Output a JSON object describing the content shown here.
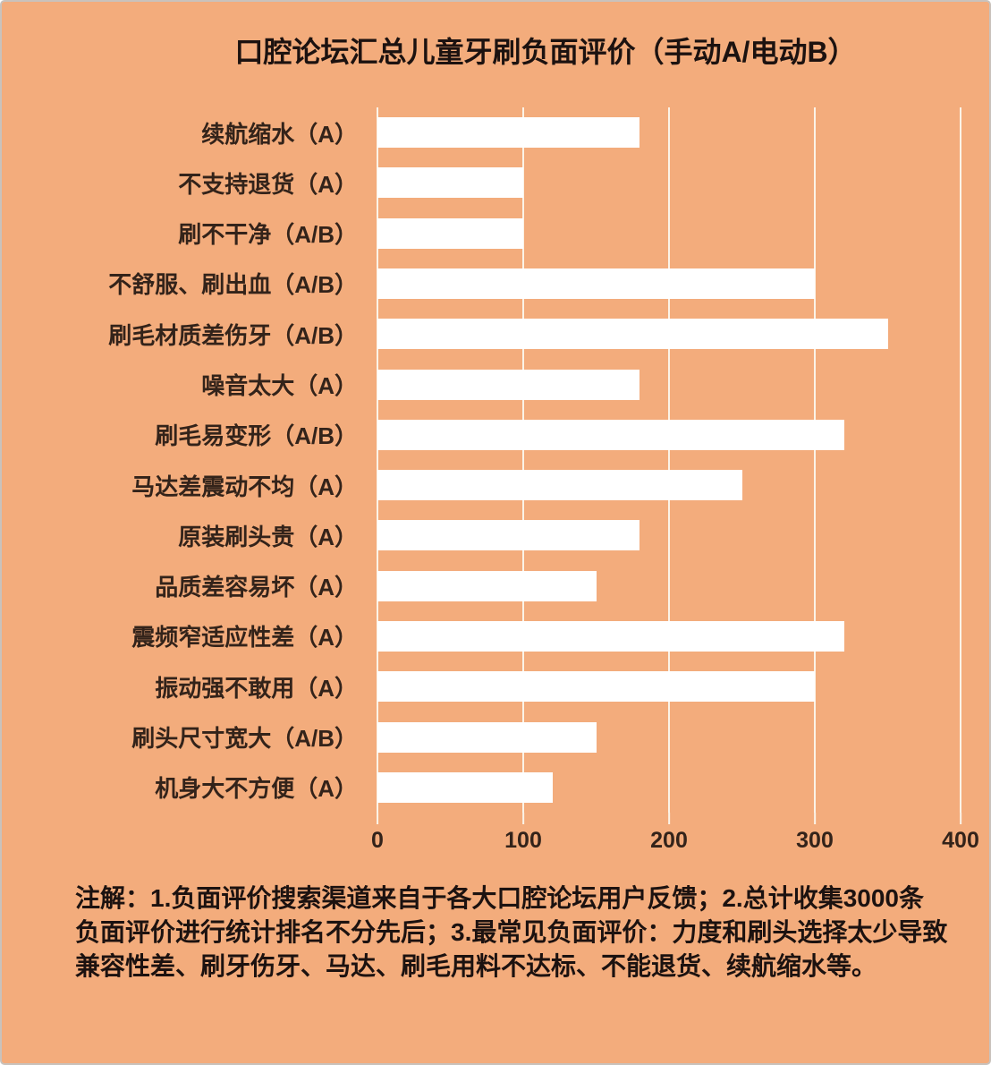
{
  "title": "口腔论坛汇总儿童牙刷负面评价（手动A/电动B）",
  "colors": {
    "background": "#F3AC7C",
    "bar": "#FFFFFF",
    "gridline": "rgba(252,248,240,0.92)",
    "label_text": "#33231A",
    "title_text": "#1C1210"
  },
  "chart_data": {
    "type": "bar",
    "orientation": "horizontal",
    "title": "口腔论坛汇总儿童牙刷负面评价（手动A/电动B）",
    "categories": [
      "续航缩水（A）",
      "不支持退货（A）",
      "刷不干净（A/B）",
      "不舒服、刷出血（A/B）",
      "刷毛材质差伤牙（A/B）",
      "噪音太大（A）",
      "刷毛易变形（A/B）",
      "马达差震动不均（A）",
      "原装刷头贵（A）",
      "品质差容易坏（A）",
      "震频窄适应性差（A）",
      "振动强不敢用（A）",
      "刷头尺寸宽大（A/B）",
      "机身大不方便（A）"
    ],
    "values": [
      180,
      100,
      100,
      300,
      350,
      180,
      320,
      250,
      180,
      150,
      320,
      300,
      150,
      120
    ],
    "xlabel": "",
    "ylabel": "",
    "xlim": [
      0,
      400
    ],
    "x_ticks": [
      0,
      100,
      200,
      300,
      400
    ],
    "grid": true,
    "legend": false
  },
  "footnote": {
    "lines": [
      "注解：1.负面评价搜索渠道来自于各大口腔论坛用户反馈；2.总计收集3000条",
      "负面评价进行统计排名不分先后；3.最常见负面评价：力度和刷头选择太少导致",
      "兼容性差、刷牙伤牙、马达、刷毛用料不达标、不能退货、续航缩水等。"
    ]
  }
}
